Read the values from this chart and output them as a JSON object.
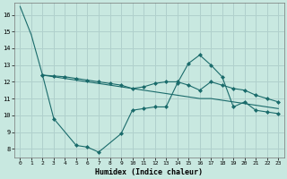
{
  "xlabel": "Humidex (Indice chaleur)",
  "background_color": "#c8e8e0",
  "grid_color": "#b0d0cc",
  "line_color": "#1a6b6b",
  "xlim": [
    -0.5,
    23.5
  ],
  "ylim": [
    7.5,
    16.7
  ],
  "yticks": [
    8,
    9,
    10,
    11,
    12,
    13,
    14,
    15,
    16
  ],
  "xticks": [
    0,
    1,
    2,
    3,
    4,
    5,
    6,
    7,
    8,
    9,
    10,
    11,
    12,
    13,
    14,
    15,
    16,
    17,
    18,
    19,
    20,
    21,
    22,
    23
  ],
  "series": {
    "top": {
      "x": [
        0,
        1,
        2,
        3,
        4,
        5,
        6,
        7,
        8,
        9,
        10,
        11,
        12,
        13,
        14,
        15,
        16,
        17,
        18,
        19,
        20,
        21,
        22,
        23
      ],
      "y": [
        16.5,
        14.8,
        12.4,
        12.3,
        12.2,
        12.1,
        12.0,
        11.9,
        11.8,
        11.7,
        11.6,
        11.5,
        11.4,
        11.3,
        11.2,
        11.1,
        11.0,
        11.0,
        10.9,
        10.8,
        10.7,
        10.6,
        10.5,
        10.4
      ],
      "markers": false
    },
    "mid": {
      "x": [
        2,
        3,
        4,
        5,
        6,
        7,
        8,
        9,
        10,
        11,
        12,
        13,
        14,
        15,
        16,
        17,
        18,
        19,
        20,
        21,
        22,
        23
      ],
      "y": [
        12.4,
        12.35,
        12.3,
        12.2,
        12.1,
        12.0,
        11.9,
        11.8,
        11.6,
        11.7,
        11.9,
        12.0,
        12.0,
        11.8,
        11.5,
        12.0,
        11.8,
        11.6,
        11.5,
        11.2,
        11.0,
        10.8
      ],
      "markers": true
    },
    "bot": {
      "x": [
        2,
        3,
        5,
        6,
        7,
        9,
        10,
        11,
        12,
        13,
        14,
        15,
        16,
        17,
        18,
        19,
        20,
        21,
        22,
        23
      ],
      "y": [
        12.4,
        9.8,
        8.2,
        8.1,
        7.8,
        8.9,
        10.3,
        10.4,
        10.5,
        10.5,
        11.9,
        13.1,
        13.6,
        13.0,
        12.3,
        10.5,
        10.8,
        10.3,
        10.2,
        10.1
      ],
      "markers": true
    }
  }
}
